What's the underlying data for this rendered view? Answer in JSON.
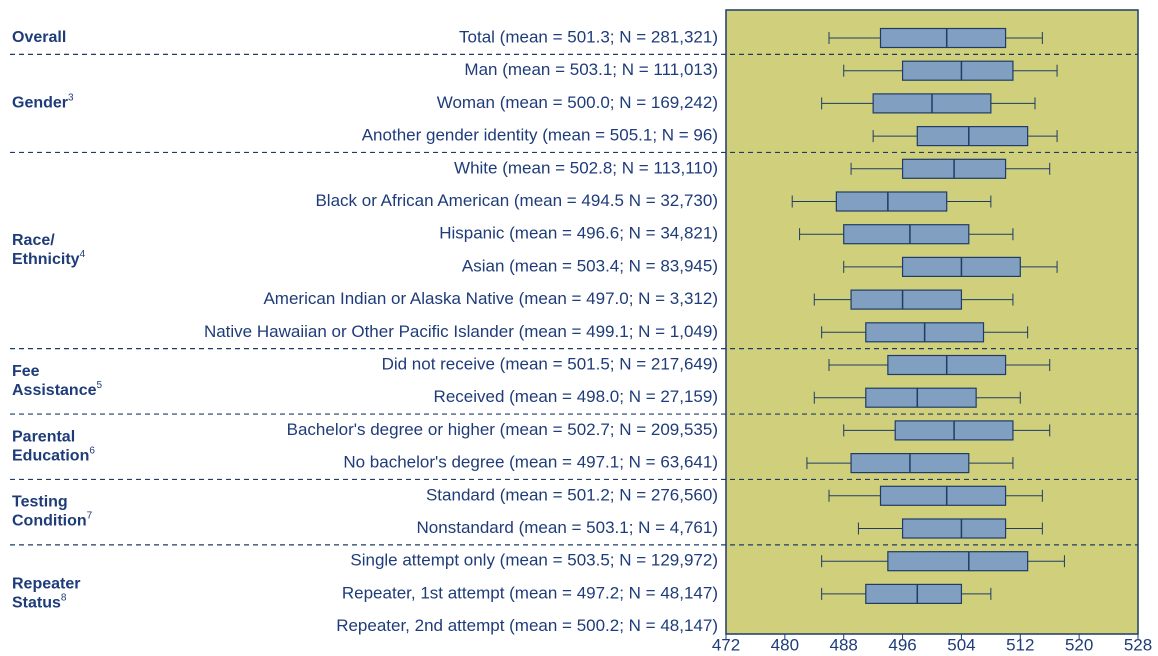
{
  "chart_data": {
    "type": "box",
    "xlim": [
      472,
      528
    ],
    "xticks": [
      472,
      480,
      488,
      496,
      504,
      512,
      520,
      528
    ],
    "panel_color": "#cfcf7c",
    "box_color": "#819fc0",
    "line_color": "#1f3c66",
    "groups": [
      {
        "lines": [
          "Overall"
        ],
        "note": null,
        "categories": [
          "Total (mean = 501.3; N = 281,321)"
        ],
        "min": [
          486
        ],
        "q1": [
          493
        ],
        "median": [
          502
        ],
        "q3": [
          510
        ],
        "max": [
          515
        ]
      },
      {
        "lines": [
          "Gender"
        ],
        "note": "3",
        "categories": [
          "Man (mean = 503.1; N = 111,013)",
          "Woman (mean = 500.0; N = 169,242)",
          "Another gender identity (mean = 505.1; N = 96)"
        ],
        "min": [
          488,
          485,
          492
        ],
        "q1": [
          496,
          492,
          498
        ],
        "median": [
          504,
          500,
          505
        ],
        "q3": [
          511,
          508,
          513
        ],
        "max": [
          517,
          514,
          517
        ]
      },
      {
        "lines": [
          "Race/",
          "Ethnicity"
        ],
        "note": "4",
        "categories": [
          "White (mean = 502.8; N = 113,110)",
          "Black or African American (mean = 494.5 N = 32,730)",
          "Hispanic (mean = 496.6; N = 34,821)",
          "Asian (mean = 503.4; N = 83,945)",
          "American Indian or Alaska Native (mean = 497.0; N = 3,312)",
          "Native Hawaiian or Other Pacific Islander (mean = 499.1; N = 1,049)"
        ],
        "min": [
          489,
          481,
          482,
          488,
          484,
          485
        ],
        "q1": [
          496,
          487,
          488,
          496,
          489,
          491
        ],
        "median": [
          503,
          494,
          497,
          504,
          496,
          499
        ],
        "q3": [
          510,
          502,
          505,
          512,
          504,
          507
        ],
        "max": [
          516,
          508,
          511,
          517,
          511,
          513
        ]
      },
      {
        "lines": [
          "Fee",
          "Assistance"
        ],
        "note": "5",
        "categories": [
          "Did not receive (mean = 501.5; N = 217,649)",
          "Received (mean = 498.0; N = 27,159)"
        ],
        "min": [
          486,
          484
        ],
        "q1": [
          494,
          491
        ],
        "median": [
          502,
          498
        ],
        "q3": [
          510,
          506
        ],
        "max": [
          516,
          512
        ]
      },
      {
        "lines": [
          "Parental",
          "Education"
        ],
        "note": "6",
        "categories": [
          "Bachelor's degree or higher (mean = 502.7; N = 209,535)",
          "No bachelor's degree (mean = 497.1; N = 63,641)"
        ],
        "min": [
          488,
          483
        ],
        "q1": [
          495,
          489
        ],
        "median": [
          503,
          497
        ],
        "q3": [
          511,
          505
        ],
        "max": [
          516,
          511
        ]
      },
      {
        "lines": [
          "Testing",
          "Condition"
        ],
        "note": "7",
        "categories": [
          "Standard (mean = 501.2; N = 276,560)",
          "Nonstandard (mean = 503.1; N = 4,761)"
        ],
        "min": [
          486,
          490
        ],
        "q1": [
          493,
          496
        ],
        "median": [
          502,
          504
        ],
        "q3": [
          510,
          510
        ],
        "max": [
          515,
          515
        ]
      },
      {
        "lines": [
          "Repeater",
          "Status"
        ],
        "note": "8",
        "categories": [
          "Single attempt only (mean = 503.5; N = 129,972)",
          "Repeater, 1st attempt (mean = 497.2; N = 48,147)",
          "Repeater, 2nd attempt (mean = 500.2; N = 48,147)"
        ],
        "min": [
          485,
          485,
          null
        ],
        "q1": [
          494,
          491,
          null
        ],
        "median": [
          505,
          498,
          null
        ],
        "q3": [
          513,
          504,
          null
        ],
        "max": [
          518,
          508,
          null
        ]
      }
    ]
  }
}
